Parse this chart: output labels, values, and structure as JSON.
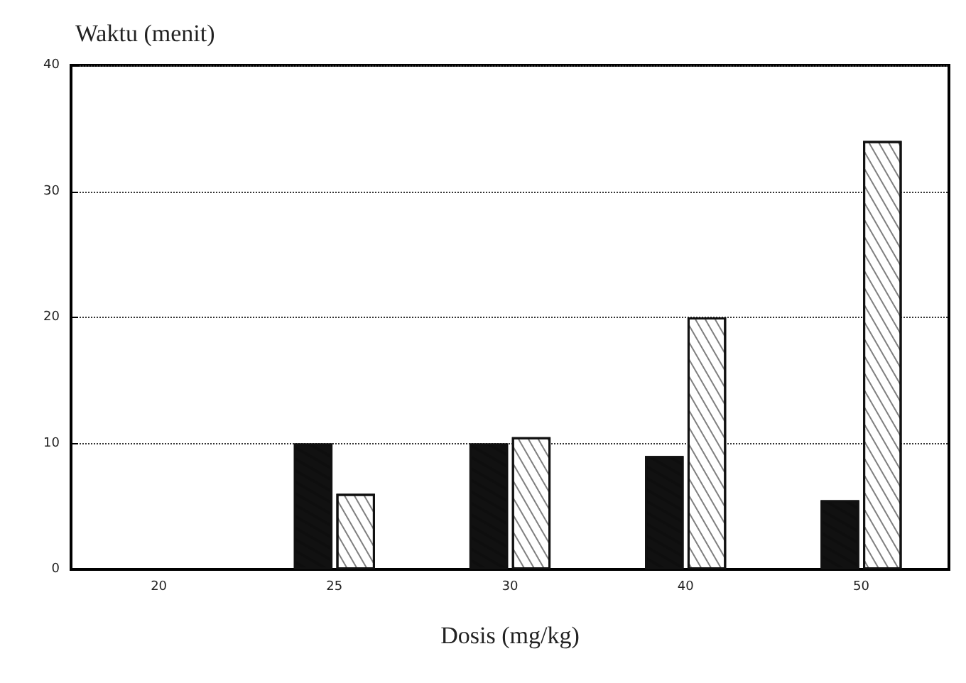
{
  "chart_data": {
    "type": "bar",
    "ylabel": "Waktu (menit)",
    "xlabel": "Dosis (mg/kg)",
    "categories": [
      "20",
      "25",
      "30",
      "40",
      "50"
    ],
    "series": [
      {
        "color": "#111111",
        "values": [
          null,
          10,
          10,
          9,
          5.5
        ]
      },
      {
        "color": "#ffffff",
        "values": [
          null,
          6,
          10.5,
          20,
          34
        ]
      }
    ],
    "ylim": [
      0,
      40
    ],
    "yticks": [
      0,
      10,
      20,
      30,
      40
    ],
    "grid": "y",
    "line_style": "dotted"
  }
}
